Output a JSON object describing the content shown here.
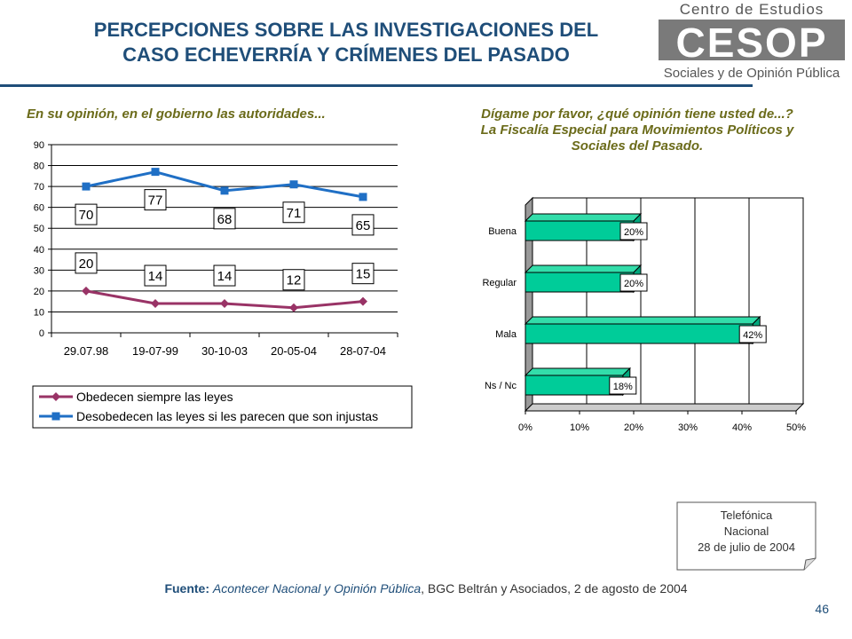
{
  "header": {
    "title_line1": "PERCEPCIONES SOBRE LAS INVESTIGACIONES DEL",
    "title_line2": "CASO ECHEVERRÍA Y CRÍMENES DEL PASADO",
    "logo_top": "Centro de Estudios",
    "logo_mark": "CESOP",
    "logo_bottom": "Sociales y de Opinión Pública"
  },
  "left_panel": {
    "subtitle": "En su opinión, en el gobierno las autoridades..."
  },
  "right_panel": {
    "subtitle_line1": "Dígame por favor, ¿qué opinión tiene usted de...?",
    "subtitle_line2": "La Fiscalía Especial para Movimientos Políticos y",
    "subtitle_line3": "Sociales del Pasado."
  },
  "chart_data": [
    {
      "type": "line",
      "categories": [
        "29.07.98",
        "19-07-99",
        "30-10-03",
        "20-05-04",
        "28-07-04"
      ],
      "series": [
        {
          "name": "Obedecen siempre las leyes",
          "values": [
            20,
            14,
            14,
            12,
            15
          ],
          "color": "#993366",
          "marker": "diamond"
        },
        {
          "name": "Desobedecen las leyes si les parecen que son injustas",
          "values": [
            70,
            77,
            68,
            71,
            65
          ],
          "color": "#1f6fc5",
          "marker": "square"
        }
      ],
      "ylim": [
        0,
        90
      ],
      "yticks": [
        0,
        10,
        20,
        30,
        40,
        50,
        60,
        70,
        80,
        90
      ],
      "grid": true,
      "legend": "bottom",
      "data_labels": true
    },
    {
      "type": "bar",
      "orientation": "horizontal",
      "categories": [
        "Buena",
        "Regular",
        "Mala",
        "Ns / Nc"
      ],
      "values": [
        20,
        20,
        42,
        18
      ],
      "data_labels": [
        "20%",
        "20%",
        "42%",
        "18%"
      ],
      "xlim": [
        0,
        50
      ],
      "xticks": [
        "0%",
        "10%",
        "20%",
        "30%",
        "40%",
        "50%"
      ],
      "bar_color": "#00cc99",
      "grid": true
    }
  ],
  "note": {
    "line1": "Telefónica",
    "line2": "Nacional",
    "line3": "28 de julio de 2004"
  },
  "source": {
    "label": "Fuente:",
    "publication": "Acontecer Nacional y Opinión Pública",
    "rest": ", BGC Beltrán y Asociados, 2 de agosto de 2004"
  },
  "page_number": "46"
}
